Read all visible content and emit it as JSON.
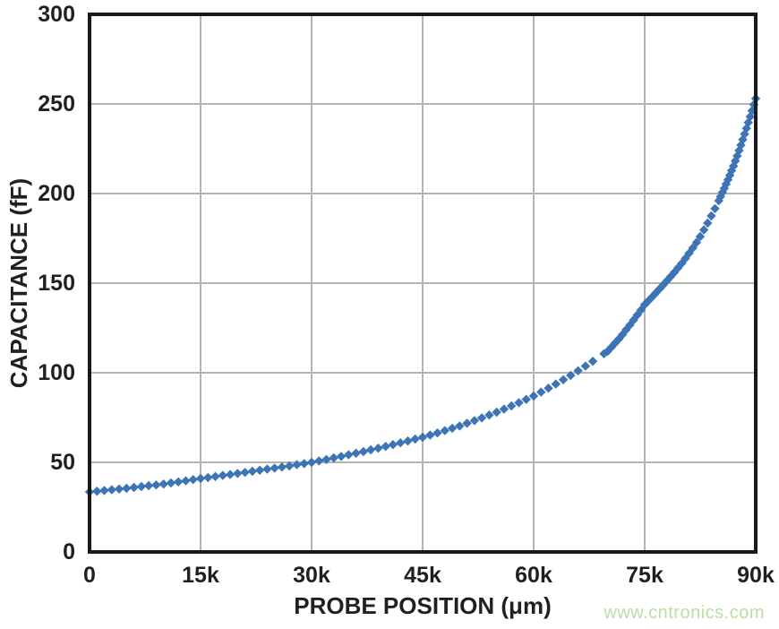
{
  "watermark": {
    "text": "www.cntronics.com",
    "color": "#b9dfa4"
  },
  "chart_data": {
    "type": "scatter",
    "title": "",
    "xlabel": "PROBE POSITION (μm)",
    "ylabel": "CAPACITANCE (fF)",
    "x_unit": "μm",
    "y_unit": "fF",
    "xlim": [
      0,
      90000
    ],
    "ylim": [
      0,
      300
    ],
    "x_ticks": [
      0,
      15000,
      30000,
      45000,
      60000,
      75000,
      90000
    ],
    "x_tick_labels": [
      "0",
      "15k",
      "30k",
      "45k",
      "60k",
      "75k",
      "90k"
    ],
    "y_ticks": [
      0,
      50,
      100,
      150,
      200,
      250,
      300
    ],
    "y_tick_labels": [
      "0",
      "50",
      "100",
      "150",
      "200",
      "250",
      "300"
    ],
    "grid": true,
    "legend": "none",
    "marker": "diamond",
    "series_color": "#3d74b5",
    "grid_color": "#b3b3b3",
    "frame_color": "#1a1a1a",
    "text_color": "#231f20",
    "series": [
      {
        "name": "capacitance-vs-probe-position",
        "points": [
          [
            0,
            33.5
          ],
          [
            1000,
            33.9
          ],
          [
            2000,
            34.3
          ],
          [
            3000,
            34.7
          ],
          [
            4000,
            35.1
          ],
          [
            5000,
            35.5
          ],
          [
            6000,
            36
          ],
          [
            7000,
            36.5
          ],
          [
            8000,
            37
          ],
          [
            9000,
            37.4
          ],
          [
            10000,
            37.9
          ],
          [
            11000,
            38.5
          ],
          [
            12000,
            39.1
          ],
          [
            13000,
            39.7
          ],
          [
            14000,
            40.4
          ],
          [
            15000,
            41
          ],
          [
            16000,
            41.5
          ],
          [
            17000,
            42.1
          ],
          [
            18000,
            42.7
          ],
          [
            19000,
            43.2
          ],
          [
            20000,
            43.8
          ],
          [
            21000,
            44.4
          ],
          [
            22000,
            45
          ],
          [
            23000,
            45.6
          ],
          [
            24000,
            46.2
          ],
          [
            25000,
            46.8
          ],
          [
            26000,
            47.4
          ],
          [
            27000,
            48
          ],
          [
            28000,
            48.7
          ],
          [
            29000,
            49.3
          ],
          [
            30000,
            50
          ],
          [
            31000,
            50.8
          ],
          [
            32000,
            51.6
          ],
          [
            33000,
            52.5
          ],
          [
            34000,
            53.3
          ],
          [
            35000,
            54.2
          ],
          [
            36000,
            55.1
          ],
          [
            37000,
            56
          ],
          [
            38000,
            57
          ],
          [
            39000,
            57.9
          ],
          [
            40000,
            58.9
          ],
          [
            41000,
            59.9
          ],
          [
            42000,
            60.9
          ],
          [
            43000,
            61.9
          ],
          [
            44000,
            63
          ],
          [
            45000,
            64
          ],
          [
            46000,
            65.2
          ],
          [
            47000,
            66.4
          ],
          [
            48000,
            67.7
          ],
          [
            49000,
            69
          ],
          [
            50000,
            70.3
          ],
          [
            51000,
            71.8
          ],
          [
            52000,
            73.3
          ],
          [
            53000,
            74.8
          ],
          [
            54000,
            76.4
          ],
          [
            55000,
            78
          ],
          [
            56000,
            79.7
          ],
          [
            57000,
            81.5
          ],
          [
            58000,
            83.3
          ],
          [
            59000,
            85.1
          ],
          [
            60000,
            87
          ],
          [
            61000,
            89.2
          ],
          [
            62000,
            91.4
          ],
          [
            63000,
            93.7
          ],
          [
            64000,
            96.1
          ],
          [
            65000,
            98.5
          ],
          [
            66000,
            101.1
          ],
          [
            67000,
            103.7
          ],
          [
            68000,
            106.4
          ],
          [
            69500,
            110.6
          ],
          [
            70000,
            112
          ],
          [
            70500,
            114.2
          ],
          [
            71000,
            116.5
          ],
          [
            71500,
            118.8
          ],
          [
            72000,
            121.3
          ],
          [
            72500,
            124
          ],
          [
            73000,
            126.6
          ],
          [
            73500,
            129.4
          ],
          [
            74000,
            132.2
          ],
          [
            74500,
            135
          ],
          [
            75000,
            138
          ],
          [
            75500,
            140.1
          ],
          [
            76000,
            142.3
          ],
          [
            76500,
            144.5
          ],
          [
            77000,
            146.7
          ],
          [
            77500,
            149
          ],
          [
            78000,
            151.3
          ],
          [
            78500,
            153.6
          ],
          [
            79000,
            156
          ],
          [
            79500,
            158.5
          ],
          [
            80000,
            161
          ],
          [
            80500,
            163.8
          ],
          [
            81000,
            166.7
          ],
          [
            81500,
            169.6
          ],
          [
            82000,
            172.7
          ],
          [
            82500,
            176
          ],
          [
            83000,
            179.7
          ],
          [
            83500,
            183.5
          ],
          [
            84000,
            187.5
          ],
          [
            84500,
            191.6
          ],
          [
            85000,
            196
          ],
          [
            85250,
            198.3
          ],
          [
            85500,
            200.6
          ],
          [
            85750,
            202.9
          ],
          [
            86000,
            205.3
          ],
          [
            86250,
            207.7
          ],
          [
            86500,
            210.2
          ],
          [
            86750,
            212.8
          ],
          [
            87000,
            215.4
          ],
          [
            87250,
            218.2
          ],
          [
            87500,
            221
          ],
          [
            87750,
            224
          ],
          [
            88000,
            227
          ],
          [
            88250,
            230.1
          ],
          [
            88500,
            233.2
          ],
          [
            88750,
            236.4
          ],
          [
            89000,
            239.6
          ],
          [
            89250,
            242.9
          ],
          [
            89500,
            246.2
          ],
          [
            89750,
            249.6
          ],
          [
            90000,
            253
          ]
        ]
      }
    ]
  }
}
